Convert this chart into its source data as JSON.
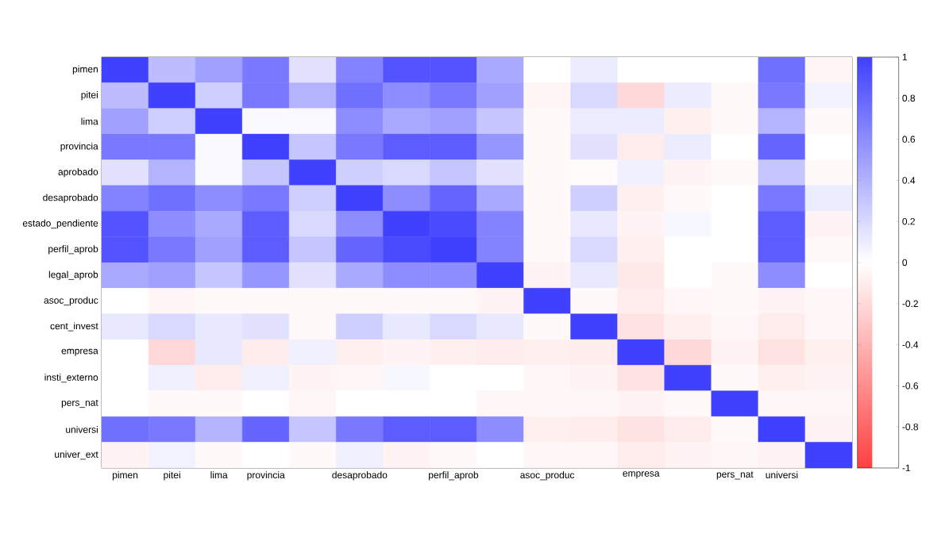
{
  "chart_data": {
    "type": "heatmap",
    "categories": [
      "pimen",
      "pitei",
      "lima",
      "provincia",
      null,
      "desaprobado",
      null,
      "perfil_aprob",
      null,
      "asoc_produc",
      null,
      "empresa",
      null,
      "pers_nat",
      "universi",
      null
    ],
    "y_categories": [
      "pimen",
      "pitei",
      "lima",
      "provincia",
      "aprobado",
      "desaprobado",
      "estado_pendiente",
      "perfil_aprob",
      "legal_aprob",
      "asoc_produc",
      "cent_invest",
      "empresa",
      "insti_externo",
      "pers_nat",
      "universi",
      "univer_ext"
    ],
    "cells": [
      [
        1,
        0.35,
        0.5,
        0.7,
        0.15,
        0.65,
        0.9,
        0.9,
        0.45,
        0,
        0.1,
        0,
        0,
        0,
        0.75,
        -0.05
      ],
      [
        0.35,
        1,
        0.25,
        0.7,
        0.4,
        0.75,
        0.6,
        0.7,
        0.5,
        -0.05,
        0.2,
        -0.2,
        0.1,
        -0.03,
        0.7,
        0.07
      ],
      [
        0.5,
        0.25,
        1,
        0.03,
        0.03,
        0.6,
        0.45,
        0.5,
        0.3,
        -0.03,
        0.1,
        0.1,
        -0.08,
        -0.03,
        0.4,
        -0.03
      ],
      [
        0.7,
        0.7,
        0.03,
        1,
        0.3,
        0.7,
        0.85,
        0.85,
        0.55,
        -0.03,
        0.15,
        -0.1,
        0.1,
        0,
        0.8,
        0
      ],
      [
        0.15,
        0.4,
        0.03,
        0.3,
        1,
        0.25,
        0.2,
        0.3,
        0.15,
        -0.03,
        -0.02,
        0.08,
        -0.06,
        -0.03,
        0.3,
        -0.03
      ],
      [
        0.65,
        0.75,
        0.6,
        0.7,
        0.25,
        1,
        0.6,
        0.8,
        0.45,
        -0.03,
        0.25,
        -0.08,
        -0.03,
        0,
        0.7,
        0.1
      ],
      [
        0.9,
        0.6,
        0.45,
        0.85,
        0.2,
        0.6,
        1,
        0.95,
        0.65,
        -0.03,
        0.12,
        -0.06,
        0.04,
        0,
        0.85,
        -0.06
      ],
      [
        0.9,
        0.7,
        0.5,
        0.85,
        0.3,
        0.8,
        0.95,
        1,
        0.65,
        -0.03,
        0.2,
        -0.08,
        0,
        0,
        0.85,
        -0.03
      ],
      [
        0.45,
        0.5,
        0.3,
        0.55,
        0.15,
        0.45,
        0.6,
        0.6,
        1,
        -0.06,
        0.12,
        -0.12,
        0,
        -0.03,
        0.6,
        0
      ],
      [
        0,
        -0.05,
        -0.03,
        -0.03,
        -0.03,
        -0.03,
        -0.03,
        -0.03,
        -0.06,
        1,
        -0.03,
        -0.1,
        -0.04,
        -0.03,
        -0.06,
        -0.04
      ],
      [
        0.12,
        0.2,
        0.12,
        0.15,
        -0.03,
        0.25,
        0.12,
        0.2,
        0.12,
        -0.03,
        1,
        -0.15,
        -0.08,
        -0.04,
        -0.1,
        -0.04
      ],
      [
        0,
        -0.2,
        0.12,
        -0.1,
        0.08,
        -0.08,
        -0.06,
        -0.08,
        -0.1,
        -0.08,
        -0.1,
        1,
        -0.2,
        -0.06,
        -0.15,
        -0.08
      ],
      [
        0,
        0.08,
        -0.1,
        0.08,
        -0.06,
        -0.04,
        0.04,
        0,
        0,
        -0.04,
        -0.06,
        -0.15,
        1,
        -0.03,
        -0.08,
        -0.06
      ],
      [
        0,
        -0.03,
        -0.03,
        0,
        -0.04,
        0,
        0,
        0,
        -0.04,
        -0.04,
        -0.04,
        -0.06,
        -0.03,
        1,
        -0.04,
        -0.04
      ],
      [
        0.75,
        0.7,
        0.4,
        0.8,
        0.3,
        0.7,
        0.85,
        0.85,
        0.6,
        -0.08,
        -0.1,
        -0.15,
        -0.1,
        -0.03,
        1,
        -0.06
      ],
      [
        -0.06,
        0.07,
        -0.03,
        0,
        -0.03,
        0.08,
        -0.06,
        -0.03,
        0,
        -0.04,
        -0.04,
        -0.1,
        -0.06,
        -0.04,
        -0.06,
        1
      ]
    ],
    "clim": [
      -1,
      1
    ],
    "cticks": [
      -1,
      -0.8,
      -0.6,
      -0.4,
      -0.2,
      0,
      0.2,
      0.4,
      0.6,
      0.8,
      1
    ]
  }
}
